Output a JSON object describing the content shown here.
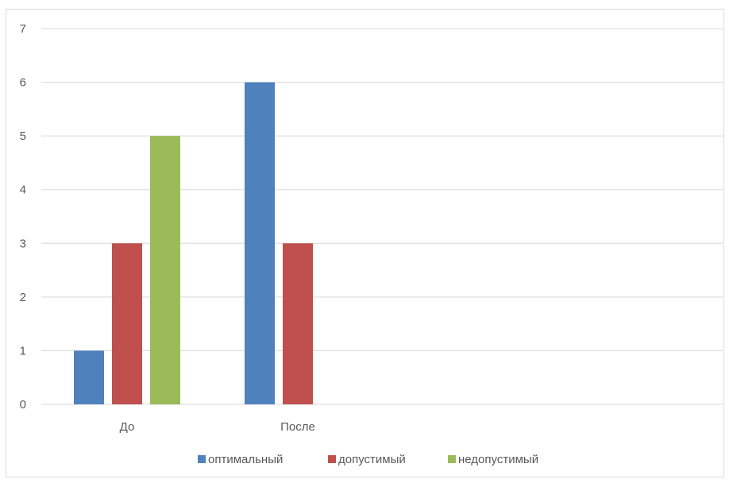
{
  "chart_data": {
    "type": "bar",
    "title": "",
    "xlabel": "",
    "ylabel": "",
    "categories": [
      "До",
      "После"
    ],
    "series": [
      {
        "name": "оптимальный",
        "color": "#4f81bd",
        "values": [
          1,
          6
        ]
      },
      {
        "name": "допустимый",
        "color": "#c0504d",
        "values": [
          3,
          3
        ]
      },
      {
        "name": "недопустимый",
        "color": "#9bbb59",
        "values": [
          5,
          0
        ]
      }
    ],
    "ylim": [
      0,
      7
    ],
    "yticks": [
      "0",
      "1",
      "2",
      "3",
      "4",
      "5",
      "6",
      "7"
    ],
    "grid": true,
    "legend": "bottom"
  }
}
